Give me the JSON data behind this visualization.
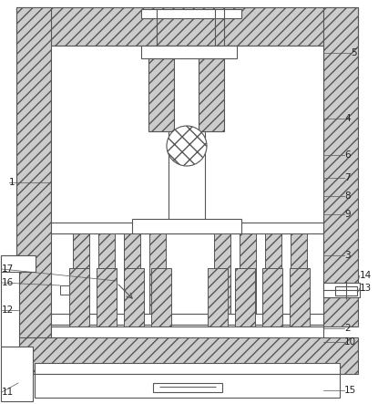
{
  "bg": "#ffffff",
  "lc": "#555555",
  "hc": "#cccccc",
  "fig_w": 4.15,
  "fig_h": 4.43,
  "dpi": 100,
  "label_fs": 7.5,
  "label_color": "#222222"
}
